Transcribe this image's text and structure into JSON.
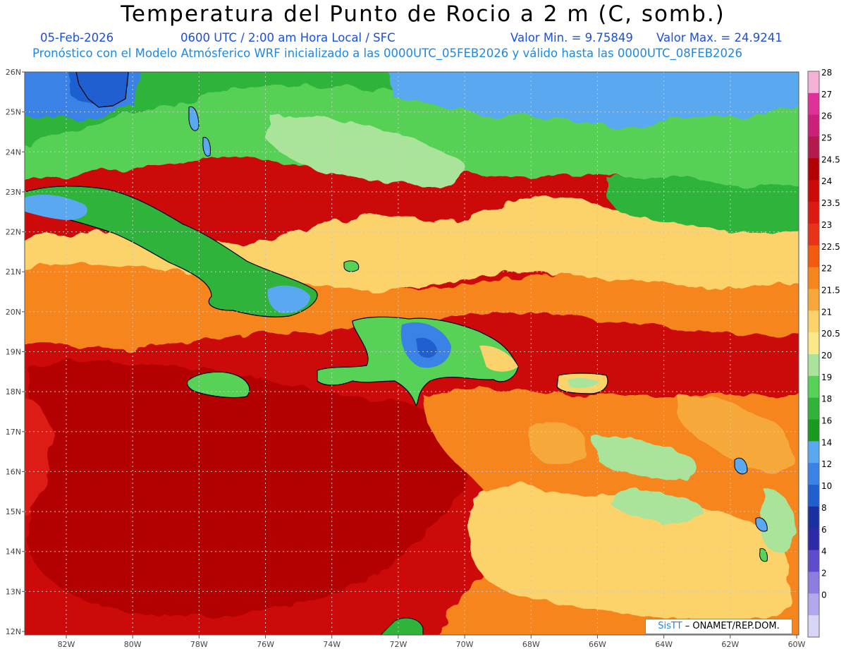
{
  "header": {
    "title": "Temperatura del Punto de Rocio a 2 m (C, somb.)",
    "date": "05-Feb-2026",
    "time": "0600 UTC / 2:00 am Hora Local / SFC",
    "min": "Valor Min. = 9.75849",
    "max": "Valor Max. = 24.9241",
    "model": "Pronóstico con el Modelo Atmósferico WRF inicializado a las 0000UTC_05FEB2026 y válido hasta las 0000UTC_08FEB2026"
  },
  "axes": {
    "lat_labels": [
      "26N",
      "25N",
      "24N",
      "23N",
      "22N",
      "21N",
      "20N",
      "19N",
      "18N",
      "17N",
      "16N",
      "15N",
      "14N",
      "13N",
      "12N"
    ],
    "lon_labels": [
      "82W",
      "80W",
      "78W",
      "76W",
      "74W",
      "72W",
      "70W",
      "68W",
      "66W",
      "64W",
      "62W",
      "60W"
    ]
  },
  "colorbar": {
    "labels": [
      "28",
      "27",
      "26",
      "25",
      "24.5",
      "24",
      "23.5",
      "23",
      "22.5",
      "22",
      "21.5",
      "21",
      "20.5",
      "20",
      "19",
      "18",
      "16",
      "14",
      "12",
      "10",
      "8",
      "6",
      "4",
      "2",
      "0"
    ],
    "colors": [
      "#f4b3d6",
      "#e0309a",
      "#cc1f7a",
      "#b31b4e",
      "#b30000",
      "#cc0a0a",
      "#dd1a12",
      "#e8331a",
      "#f25a0f",
      "#f5851d",
      "#f7a83a",
      "#fcd36a",
      "#fbe888",
      "#a9e49a",
      "#57d156",
      "#2fb33a",
      "#169a20",
      "#5aa8f0",
      "#3a82e6",
      "#1f5fd0",
      "#1a2fa0",
      "#2c2aa8",
      "#5d4ccc",
      "#8e7de0",
      "#b2a8ee",
      "#d8d6f6"
    ]
  },
  "credit": {
    "brand": "SisTT",
    "text": "– ONAMET/REP.DOM."
  },
  "legend_colors": {
    "ocean_red": "#cc0a0a",
    "deep_red": "#b30000",
    "orange": "#f5851d",
    "yellow": "#fcd36a",
    "light_green": "#a9e49a",
    "green": "#57d156",
    "dark_green": "#2fb33a",
    "blue": "#5aa8f0",
    "deep_blue": "#1f5fd0"
  }
}
